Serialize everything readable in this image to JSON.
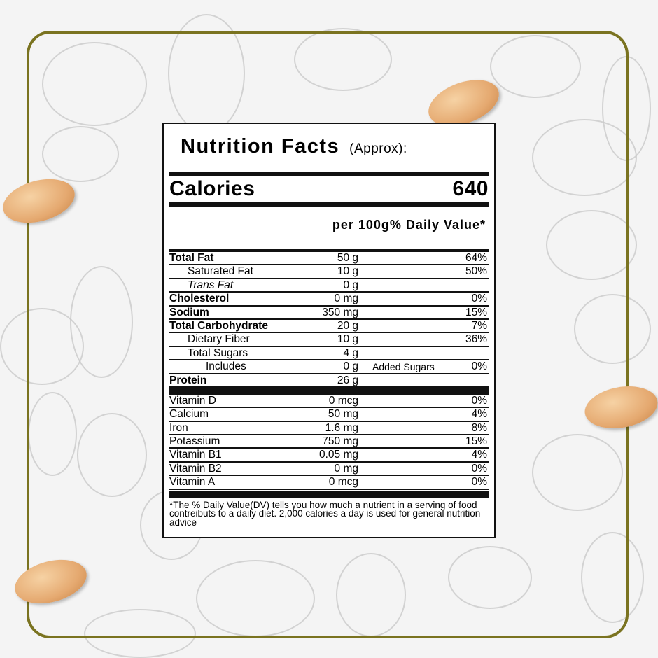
{
  "label": {
    "title": "Nutrition Facts",
    "title_note": "(Approx):",
    "calories_label": "Calories",
    "calories_value": "640",
    "column_header": "per 100g% Daily Value*",
    "nutrients": [
      {
        "name": "Total Fat",
        "amount": "50 g",
        "dv": "64%",
        "style": "bold"
      },
      {
        "name": "Saturated Fat",
        "amount": "10 g",
        "dv": "50%",
        "style": "indent"
      },
      {
        "name": "Trans Fat",
        "amount": "0 g",
        "dv": "",
        "style": "italic"
      },
      {
        "name": "Cholesterol",
        "amount": "0 mg",
        "dv": "0%",
        "style": "bold"
      },
      {
        "name": "Sodium",
        "amount": "350 mg",
        "dv": "15%",
        "style": "bold"
      },
      {
        "name": "Total Carbohydrate",
        "amount": "20 g",
        "dv": "7%",
        "style": "bold"
      },
      {
        "name": "Dietary Fiber",
        "amount": "10 g",
        "dv": "36%",
        "style": "indent"
      },
      {
        "name": "Total Sugars",
        "amount": "4 g",
        "dv": "",
        "style": "indent"
      },
      {
        "name": "Includes",
        "amount": "0 g",
        "extra": "Added Sugars",
        "dv": "0%",
        "style": "indent2"
      },
      {
        "name": "Protein",
        "amount": "26 g",
        "dv": "",
        "style": "bold"
      }
    ],
    "vitamins": [
      {
        "name": "Vitamin D",
        "amount": "0 mcg",
        "dv": "0%"
      },
      {
        "name": "Calcium",
        "amount": "50 mg",
        "dv": "4%"
      },
      {
        "name": "Iron",
        "amount": "1.6 mg",
        "dv": "8%"
      },
      {
        "name": "Potassium",
        "amount": "750 mg",
        "dv": "15%"
      },
      {
        "name": "Vitamin B1",
        "amount": "0.05 mg",
        "dv": "4%"
      },
      {
        "name": "Vitamin B2",
        "amount": "0 mg",
        "dv": "0%"
      },
      {
        "name": "Vitamin A",
        "amount": "0 mcg",
        "dv": "0%"
      }
    ],
    "footnote": "*The % Daily Value(DV) tells you how much a nutrient in a serving of food contreibuts to a daily diet. 2,000 calories a day is used for general nutrition advice"
  },
  "colors": {
    "frame": "#7a7320",
    "peanut": "#e5a970"
  }
}
